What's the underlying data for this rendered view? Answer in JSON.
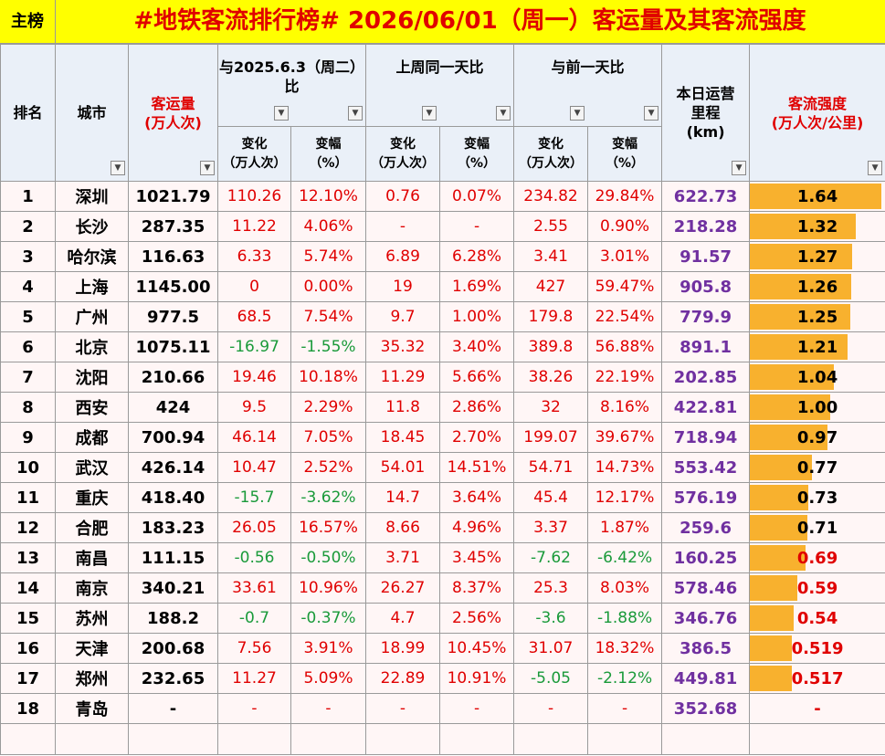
{
  "header": {
    "tag": "主榜",
    "title": "#地铁客流排行榜# 2026/06/01（周一）客运量及其客流强度"
  },
  "table": {
    "top_headers": [
      [
        "排名"
      ],
      [
        "城市"
      ],
      [
        "客运量",
        "(万人次)"
      ],
      [
        "与2025.6.3（周二）",
        "比"
      ],
      [
        "上周同一天比"
      ],
      [
        "与前一天比"
      ],
      [
        "本日运营",
        "里程",
        "(km)"
      ],
      [
        "客流强度",
        "(万人次/公里)"
      ]
    ],
    "sub_headers": [
      [
        "变化",
        "（万人次）"
      ],
      [
        "变幅",
        "（%）"
      ],
      [
        "变化",
        "（万人次）"
      ],
      [
        "变幅",
        "（%）"
      ],
      [
        "变化",
        "（万人次）"
      ],
      [
        "变幅",
        "（%）"
      ]
    ],
    "rows": [
      [
        "1",
        "深圳",
        "1021.79",
        "110.26",
        "12.10%",
        "0.76",
        "0.07%",
        "234.82",
        "29.84%",
        "622.73",
        "1.64"
      ],
      [
        "2",
        "长沙",
        "287.35",
        "11.22",
        "4.06%",
        "-",
        "-",
        "2.55",
        "0.90%",
        "218.28",
        "1.32"
      ],
      [
        "3",
        "哈尔滨",
        "116.63",
        "6.33",
        "5.74%",
        "6.89",
        "6.28%",
        "3.41",
        "3.01%",
        "91.57",
        "1.27"
      ],
      [
        "4",
        "上海",
        "1145.00",
        "0",
        "0.00%",
        "19",
        "1.69%",
        "427",
        "59.47%",
        "905.8",
        "1.26"
      ],
      [
        "5",
        "广州",
        "977.5",
        "68.5",
        "7.54%",
        "9.7",
        "1.00%",
        "179.8",
        "22.54%",
        "779.9",
        "1.25"
      ],
      [
        "6",
        "北京",
        "1075.11",
        "-16.97",
        "-1.55%",
        "35.32",
        "3.40%",
        "389.8",
        "56.88%",
        "891.1",
        "1.21"
      ],
      [
        "7",
        "沈阳",
        "210.66",
        "19.46",
        "10.18%",
        "11.29",
        "5.66%",
        "38.26",
        "22.19%",
        "202.85",
        "1.04"
      ],
      [
        "8",
        "西安",
        "424",
        "9.5",
        "2.29%",
        "11.8",
        "2.86%",
        "32",
        "8.16%",
        "422.81",
        "1.00"
      ],
      [
        "9",
        "成都",
        "700.94",
        "46.14",
        "7.05%",
        "18.45",
        "2.70%",
        "199.07",
        "39.67%",
        "718.94",
        "0.97"
      ],
      [
        "10",
        "武汉",
        "426.14",
        "10.47",
        "2.52%",
        "54.01",
        "14.51%",
        "54.71",
        "14.73%",
        "553.42",
        "0.77"
      ],
      [
        "11",
        "重庆",
        "418.40",
        "-15.7",
        "-3.62%",
        "14.7",
        "3.64%",
        "45.4",
        "12.17%",
        "576.19",
        "0.73"
      ],
      [
        "12",
        "合肥",
        "183.23",
        "26.05",
        "16.57%",
        "8.66",
        "4.96%",
        "3.37",
        "1.87%",
        "259.6",
        "0.71"
      ],
      [
        "13",
        "南昌",
        "111.15",
        "-0.56",
        "-0.50%",
        "3.71",
        "3.45%",
        "-7.62",
        "-6.42%",
        "160.25",
        "0.69"
      ],
      [
        "14",
        "南京",
        "340.21",
        "33.61",
        "10.96%",
        "26.27",
        "8.37%",
        "25.3",
        "8.03%",
        "578.46",
        "0.59"
      ],
      [
        "15",
        "苏州",
        "188.2",
        "-0.7",
        "-0.37%",
        "4.7",
        "2.56%",
        "-3.6",
        "-1.88%",
        "346.76",
        "0.54"
      ],
      [
        "16",
        "天津",
        "200.68",
        "7.56",
        "3.91%",
        "18.99",
        "10.45%",
        "31.07",
        "18.32%",
        "386.5",
        "0.519"
      ],
      [
        "17",
        "郑州",
        "232.65",
        "11.27",
        "5.09%",
        "22.89",
        "10.91%",
        "-5.05",
        "-2.12%",
        "449.81",
        "0.517"
      ],
      [
        "18",
        "青岛",
        "-",
        "-",
        "-",
        "-",
        "-",
        "-",
        "-",
        "352.68",
        "-"
      ]
    ]
  }
}
